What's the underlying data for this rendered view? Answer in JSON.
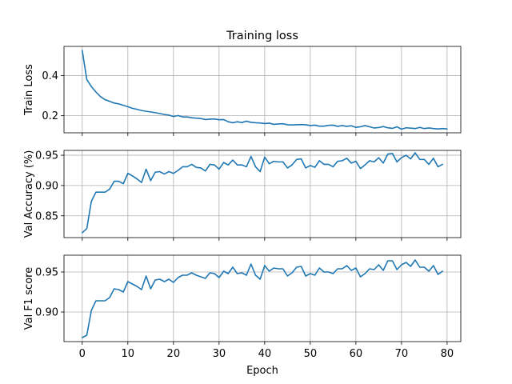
{
  "chart_data": {
    "type": "line",
    "title": "Training loss",
    "xlabel": "Epoch",
    "x_ticks": [
      0,
      10,
      20,
      30,
      40,
      50,
      60,
      70,
      80
    ],
    "xlim": [
      -4,
      83
    ],
    "grid": true,
    "color": "#1f77b4",
    "subplots": [
      {
        "ylabel": "Train Loss",
        "ylim": [
          0.115,
          0.545
        ],
        "y_ticks": [
          0.2,
          0.4
        ],
        "y_tick_labels": [
          "0.2",
          "0.4"
        ],
        "values": [
          0.525,
          0.38,
          0.345,
          0.318,
          0.295,
          0.28,
          0.272,
          0.263,
          0.259,
          0.252,
          0.245,
          0.237,
          0.232,
          0.226,
          0.222,
          0.219,
          0.215,
          0.211,
          0.206,
          0.203,
          0.196,
          0.201,
          0.194,
          0.194,
          0.19,
          0.188,
          0.186,
          0.181,
          0.183,
          0.184,
          0.18,
          0.181,
          0.17,
          0.165,
          0.17,
          0.166,
          0.173,
          0.167,
          0.165,
          0.164,
          0.161,
          0.163,
          0.157,
          0.159,
          0.16,
          0.155,
          0.154,
          0.155,
          0.156,
          0.155,
          0.151,
          0.153,
          0.148,
          0.148,
          0.152,
          0.153,
          0.147,
          0.151,
          0.147,
          0.15,
          0.142,
          0.145,
          0.151,
          0.145,
          0.139,
          0.141,
          0.146,
          0.14,
          0.137,
          0.145,
          0.133,
          0.14,
          0.138,
          0.136,
          0.142,
          0.136,
          0.139,
          0.136,
          0.134,
          0.136,
          0.134
        ]
      },
      {
        "ylabel": "Val Accuracy (%)",
        "ylim": [
          0.814,
          0.958
        ],
        "y_ticks": [
          0.85,
          0.9,
          0.95
        ],
        "y_tick_labels": [
          "0.85",
          "0.90",
          "0.95"
        ],
        "values": [
          0.822,
          0.829,
          0.874,
          0.889,
          0.889,
          0.889,
          0.894,
          0.907,
          0.907,
          0.903,
          0.92,
          0.916,
          0.911,
          0.905,
          0.927,
          0.908,
          0.922,
          0.923,
          0.919,
          0.923,
          0.92,
          0.925,
          0.931,
          0.931,
          0.935,
          0.93,
          0.929,
          0.924,
          0.935,
          0.934,
          0.927,
          0.938,
          0.934,
          0.942,
          0.934,
          0.934,
          0.931,
          0.948,
          0.931,
          0.923,
          0.947,
          0.936,
          0.94,
          0.939,
          0.939,
          0.929,
          0.934,
          0.943,
          0.944,
          0.929,
          0.933,
          0.93,
          0.941,
          0.935,
          0.935,
          0.931,
          0.94,
          0.941,
          0.945,
          0.937,
          0.94,
          0.928,
          0.934,
          0.941,
          0.939,
          0.946,
          0.937,
          0.952,
          0.953,
          0.939,
          0.946,
          0.95,
          0.944,
          0.954,
          0.943,
          0.943,
          0.935,
          0.945,
          0.931,
          0.935
        ]
      },
      {
        "ylabel": "Val F1 score",
        "ylim": [
          0.863,
          0.971
        ],
        "y_ticks": [
          0.9,
          0.95
        ],
        "y_tick_labels": [
          "0.90",
          "0.95"
        ],
        "values": [
          0.868,
          0.871,
          0.902,
          0.914,
          0.914,
          0.914,
          0.918,
          0.929,
          0.928,
          0.925,
          0.938,
          0.935,
          0.932,
          0.928,
          0.945,
          0.929,
          0.94,
          0.941,
          0.938,
          0.941,
          0.937,
          0.943,
          0.946,
          0.946,
          0.949,
          0.946,
          0.944,
          0.942,
          0.949,
          0.948,
          0.943,
          0.951,
          0.948,
          0.956,
          0.948,
          0.949,
          0.946,
          0.96,
          0.946,
          0.941,
          0.958,
          0.951,
          0.955,
          0.954,
          0.954,
          0.945,
          0.949,
          0.956,
          0.957,
          0.945,
          0.948,
          0.946,
          0.955,
          0.95,
          0.95,
          0.948,
          0.954,
          0.954,
          0.958,
          0.952,
          0.955,
          0.944,
          0.948,
          0.954,
          0.953,
          0.959,
          0.952,
          0.964,
          0.964,
          0.953,
          0.959,
          0.962,
          0.957,
          0.965,
          0.956,
          0.956,
          0.951,
          0.958,
          0.947,
          0.951
        ]
      }
    ]
  }
}
